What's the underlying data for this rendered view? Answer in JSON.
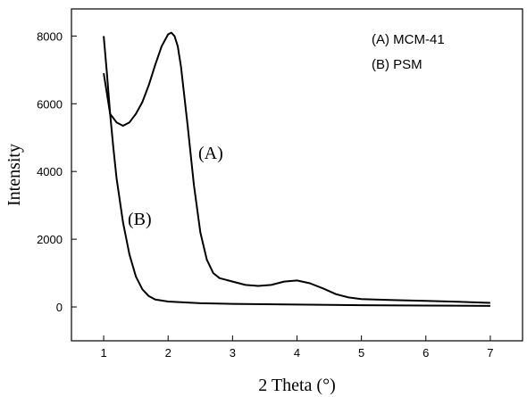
{
  "chart_data": {
    "type": "line",
    "title": "",
    "xlabel": "2 Theta (°)",
    "ylabel": "Intensity",
    "xlim": [
      0.5,
      7.5
    ],
    "ylim": [
      -1000,
      8800
    ],
    "x_ticks": [
      1,
      2,
      3,
      4,
      5,
      6,
      7
    ],
    "x_tick_labels": [
      "1",
      "2",
      "3",
      "4",
      "5",
      "6",
      "7"
    ],
    "y_ticks": [
      0,
      2000,
      4000,
      6000,
      8000
    ],
    "y_tick_labels": [
      "0",
      "2000",
      "4000",
      "6000",
      "8000"
    ],
    "grid": false,
    "legend_position": "top-right",
    "legend": [
      "(A) MCM-41",
      "(B) PSM"
    ],
    "curve_labels": [
      "(A)",
      "(B)"
    ],
    "line_color": "#000000",
    "series": [
      {
        "name": "(A) MCM-41",
        "x": [
          1.0,
          1.1,
          1.2,
          1.3,
          1.4,
          1.5,
          1.6,
          1.7,
          1.8,
          1.9,
          2.0,
          2.05,
          2.1,
          2.15,
          2.2,
          2.3,
          2.4,
          2.5,
          2.6,
          2.7,
          2.8,
          2.9,
          3.0,
          3.2,
          3.4,
          3.6,
          3.8,
          4.0,
          4.2,
          4.4,
          4.6,
          4.8,
          5.0,
          5.5,
          6.0,
          6.5,
          7.0
        ],
        "y": [
          6900,
          5700,
          5450,
          5350,
          5450,
          5700,
          6050,
          6550,
          7150,
          7700,
          8050,
          8100,
          8000,
          7700,
          7100,
          5400,
          3600,
          2200,
          1400,
          1000,
          850,
          800,
          750,
          650,
          620,
          650,
          750,
          780,
          700,
          550,
          380,
          280,
          230,
          200,
          180,
          150,
          120
        ]
      },
      {
        "name": "(B) PSM",
        "x": [
          1.0,
          1.05,
          1.1,
          1.15,
          1.2,
          1.3,
          1.4,
          1.5,
          1.6,
          1.7,
          1.8,
          2.0,
          2.5,
          3.0,
          4.0,
          5.0,
          6.0,
          7.0
        ],
        "y": [
          8000,
          6900,
          5700,
          4700,
          3800,
          2500,
          1550,
          900,
          520,
          320,
          220,
          160,
          110,
          90,
          70,
          50,
          40,
          30
        ]
      }
    ]
  }
}
